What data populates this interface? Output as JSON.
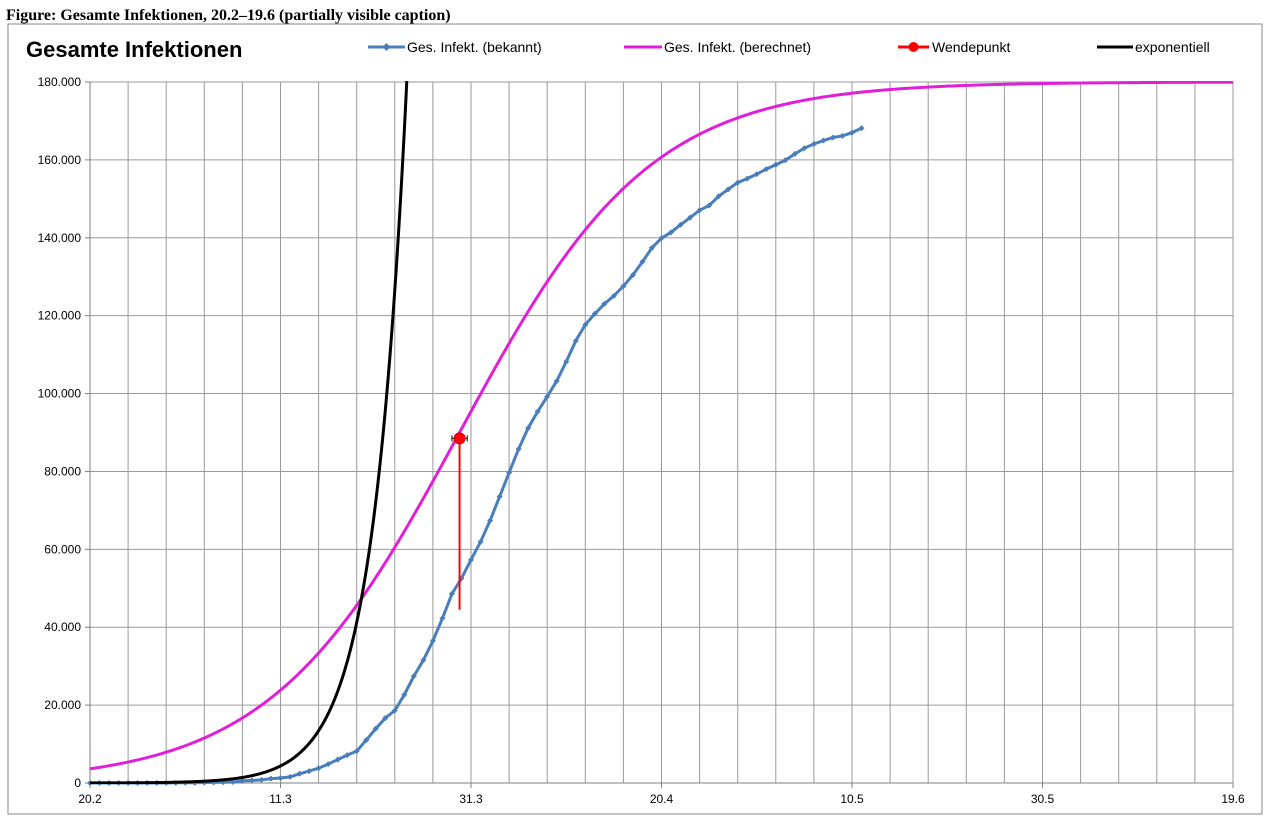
{
  "header_text": "Figure: Gesamte Infektionen, 20.2–19.6 (partially visible caption)",
  "chart_data": {
    "type": "line",
    "title": "Gesamte Infektionen",
    "xlabel": "",
    "ylabel": "",
    "x_tick_labels": [
      "20.2",
      "11.3",
      "31.3",
      "20.4",
      "10.5",
      "30.5",
      "19.6"
    ],
    "x_tick_days": [
      0,
      20,
      40,
      60,
      80,
      100,
      120
    ],
    "xlim": [
      0,
      120
    ],
    "ylim": [
      0,
      180000
    ],
    "y_ticks": [
      0,
      20000,
      40000,
      60000,
      80000,
      100000,
      120000,
      140000,
      160000,
      180000
    ],
    "y_tick_labels": [
      "0",
      "20.000",
      "40.000",
      "60.000",
      "80.000",
      "100.000",
      "120.000",
      "140.000",
      "160.000",
      "180.000"
    ],
    "grid": true,
    "legend_position": "top",
    "series": [
      {
        "name": "Ges. Infekt. (bekannt)",
        "color": "#4a7ebb",
        "marker": "diamond",
        "x": [
          0,
          1,
          2,
          3,
          4,
          5,
          6,
          7,
          8,
          9,
          10,
          11,
          12,
          13,
          14,
          15,
          16,
          17,
          18,
          19,
          20,
          21,
          22,
          23,
          24,
          25,
          26,
          27,
          28,
          29,
          30,
          31,
          32,
          33,
          34,
          35,
          36,
          37,
          38,
          39,
          40,
          41,
          42,
          43,
          44,
          45,
          46,
          47,
          48,
          49,
          50,
          51,
          52,
          53,
          54,
          55,
          56,
          57,
          58,
          59,
          60,
          61,
          62,
          63,
          64,
          65,
          66,
          67,
          68,
          69,
          70,
          71,
          72,
          73,
          74,
          75,
          76,
          77,
          78,
          79,
          80,
          81
        ],
        "y": [
          16,
          16,
          16,
          16,
          16,
          16,
          16,
          16,
          16,
          48,
          66,
          79,
          129,
          157,
          196,
          262,
          534,
          639,
          795,
          1112,
          1296,
          1567,
          2369,
          3062,
          3795,
          4838,
          6012,
          7156,
          8198,
          10999,
          13957,
          16662,
          18610,
          22672,
          27436,
          31554,
          36508,
          42288,
          48582,
          52547,
          57298,
          61913,
          67366,
          73522,
          79696,
          85778,
          91159,
          95391,
          99225,
          103228,
          108202,
          113525,
          117658,
          120479,
          123016,
          125098,
          127584,
          130450,
          133830,
          137439,
          139897,
          141397,
          143342,
          145184,
          147065,
          148291,
          150648,
          152438,
          154175,
          155193,
          156337,
          157641,
          158758,
          159912,
          161539,
          163009,
          164077,
          164967,
          165745,
          166152,
          167007,
          168162
        ]
      },
      {
        "name": "Ges. Infekt. (berechnet)",
        "color": "#e020d8",
        "logistic": {
          "K": 180000,
          "x0": 38.8,
          "k": 0.1
        },
        "x_range": [
          0,
          120
        ]
      },
      {
        "name": "Wendepunkt",
        "color": "#ff0000",
        "marker": "circle",
        "x": [
          38.8
        ],
        "y": [
          88500
        ],
        "error_y_low": 44500,
        "error_x": 0.8
      },
      {
        "name": "exponentiell",
        "color": "#000000",
        "exponential": {
          "a": 16,
          "b": 0.2805
        },
        "x_range": [
          0,
          37.5
        ]
      }
    ]
  }
}
